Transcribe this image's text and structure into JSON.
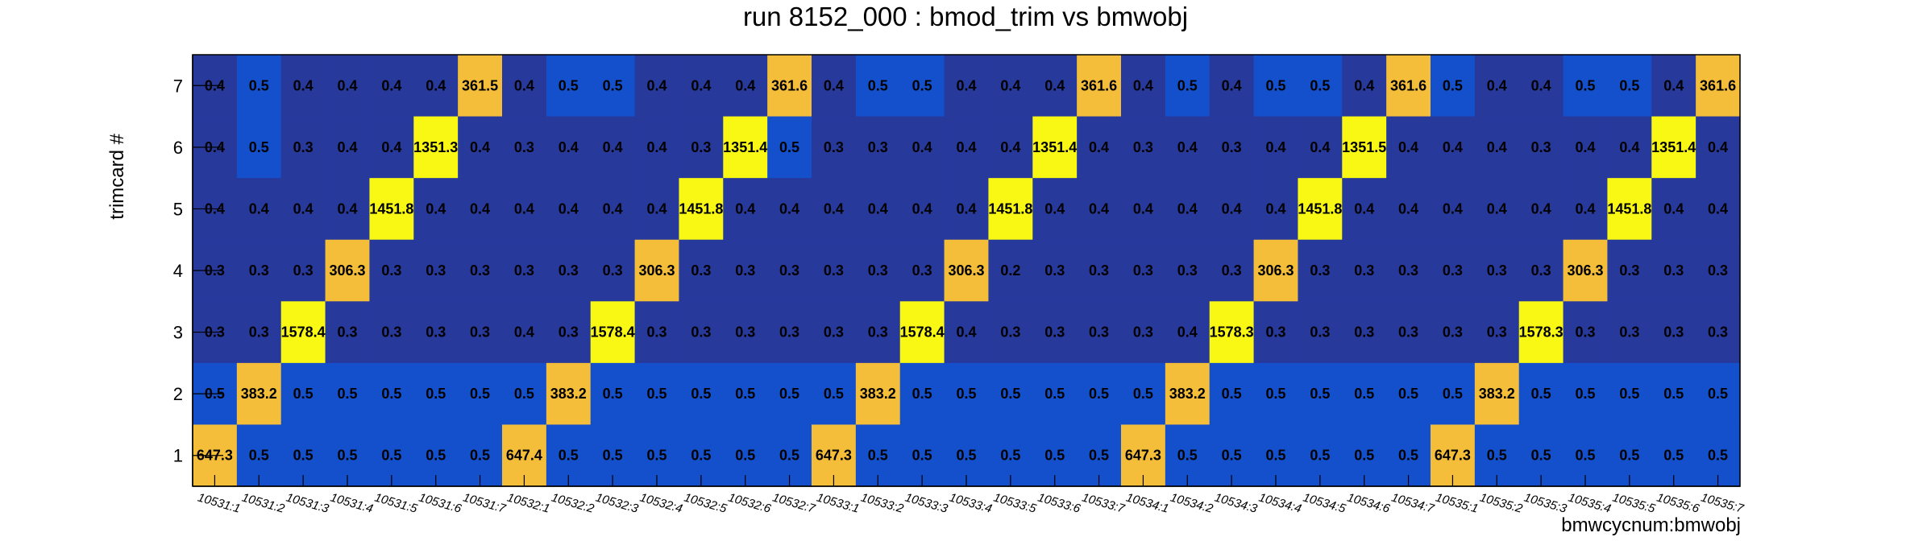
{
  "chart_data": {
    "type": "heatmap",
    "title": "run 8152_000 : bmod_trim vs bmwobj",
    "xlabel": "bmwcycnum:bmwobj",
    "ylabel": "trimcard #",
    "y_categories": [
      "1",
      "2",
      "3",
      "4",
      "5",
      "6",
      "7"
    ],
    "x_categories": [
      "10531:1",
      "10531:2",
      "10531:3",
      "10531:4",
      "10531:5",
      "10531:6",
      "10531:7",
      "10532:1",
      "10532:2",
      "10532:3",
      "10532:4",
      "10532:5",
      "10532:6",
      "10532:7",
      "10533:1",
      "10533:2",
      "10533:3",
      "10533:4",
      "10533:5",
      "10533:6",
      "10533:7",
      "10534:1",
      "10534:2",
      "10534:3",
      "10534:4",
      "10534:5",
      "10534:6",
      "10534:7",
      "10535:1",
      "10535:2",
      "10535:3",
      "10535:4",
      "10535:5",
      "10535:6",
      "10535:7"
    ],
    "rows": [
      {
        "y": "7",
        "values": [
          "0.4",
          "0.5",
          "0.4",
          "0.4",
          "0.4",
          "0.4",
          "361.5",
          "0.4",
          "0.5",
          "0.5",
          "0.4",
          "0.4",
          "0.4",
          "361.6",
          "0.4",
          "0.5",
          "0.5",
          "0.4",
          "0.4",
          "0.4",
          "361.6",
          "0.4",
          "0.5",
          "0.4",
          "0.5",
          "0.5",
          "0.4",
          "361.6",
          "0.5",
          "0.4",
          "0.4",
          "0.5",
          "0.5",
          "0.4",
          "361.6"
        ]
      },
      {
        "y": "6",
        "values": [
          "0.4",
          "0.5",
          "0.3",
          "0.4",
          "0.4",
          "1351.3",
          "0.4",
          "0.3",
          "0.4",
          "0.4",
          "0.4",
          "0.3",
          "1351.4",
          "0.5",
          "0.3",
          "0.3",
          "0.4",
          "0.4",
          "0.4",
          "1351.4",
          "0.4",
          "0.3",
          "0.4",
          "0.3",
          "0.4",
          "0.4",
          "1351.5",
          "0.4",
          "0.4",
          "0.4",
          "0.3",
          "0.4",
          "0.4",
          "1351.4",
          "0.4"
        ]
      },
      {
        "y": "5",
        "values": [
          "0.4",
          "0.4",
          "0.4",
          "0.4",
          "1451.8",
          "0.4",
          "0.4",
          "0.4",
          "0.4",
          "0.4",
          "0.4",
          "1451.8",
          "0.4",
          "0.4",
          "0.4",
          "0.4",
          "0.4",
          "0.4",
          "1451.8",
          "0.4",
          "0.4",
          "0.4",
          "0.4",
          "0.4",
          "0.4",
          "1451.8",
          "0.4",
          "0.4",
          "0.4",
          "0.4",
          "0.4",
          "0.4",
          "1451.8",
          "0.4",
          "0.4"
        ]
      },
      {
        "y": "4",
        "values": [
          "0.3",
          "0.3",
          "0.3",
          "306.3",
          "0.3",
          "0.3",
          "0.3",
          "0.3",
          "0.3",
          "0.3",
          "306.3",
          "0.3",
          "0.3",
          "0.3",
          "0.3",
          "0.3",
          "0.3",
          "306.3",
          "0.2",
          "0.3",
          "0.3",
          "0.3",
          "0.3",
          "0.3",
          "306.3",
          "0.3",
          "0.3",
          "0.3",
          "0.3",
          "0.3",
          "0.3",
          "306.3",
          "0.3",
          "0.3",
          "0.3"
        ]
      },
      {
        "y": "3",
        "values": [
          "0.3",
          "0.3",
          "1578.4",
          "0.3",
          "0.3",
          "0.3",
          "0.3",
          "0.4",
          "0.3",
          "1578.4",
          "0.3",
          "0.3",
          "0.3",
          "0.3",
          "0.3",
          "0.3",
          "1578.4",
          "0.4",
          "0.3",
          "0.3",
          "0.3",
          "0.3",
          "0.4",
          "1578.3",
          "0.3",
          "0.3",
          "0.3",
          "0.3",
          "0.3",
          "0.3",
          "1578.3",
          "0.3",
          "0.3",
          "0.3",
          "0.3"
        ]
      },
      {
        "y": "2",
        "values": [
          "0.5",
          "383.2",
          "0.5",
          "0.5",
          "0.5",
          "0.5",
          "0.5",
          "0.5",
          "383.2",
          "0.5",
          "0.5",
          "0.5",
          "0.5",
          "0.5",
          "0.5",
          "383.2",
          "0.5",
          "0.5",
          "0.5",
          "0.5",
          "0.5",
          "0.5",
          "383.2",
          "0.5",
          "0.5",
          "0.5",
          "0.5",
          "0.5",
          "0.5",
          "383.2",
          "0.5",
          "0.5",
          "0.5",
          "0.5",
          "0.5"
        ]
      },
      {
        "y": "1",
        "values": [
          "647.3",
          "0.5",
          "0.5",
          "0.5",
          "0.5",
          "0.5",
          "0.5",
          "647.4",
          "0.5",
          "0.5",
          "0.5",
          "0.5",
          "0.5",
          "0.5",
          "647.3",
          "0.5",
          "0.5",
          "0.5",
          "0.5",
          "0.5",
          "0.5",
          "647.3",
          "0.5",
          "0.5",
          "0.5",
          "0.5",
          "0.5",
          "0.5",
          "647.3",
          "0.5",
          "0.5",
          "0.5",
          "0.5",
          "0.5",
          "0.5"
        ]
      }
    ],
    "colors": {
      "low_dark": "#27399b",
      "low_light": "#1450cc",
      "mid": "#f5be3a",
      "high": "#f9f814"
    },
    "grid": false,
    "legend": "none"
  }
}
